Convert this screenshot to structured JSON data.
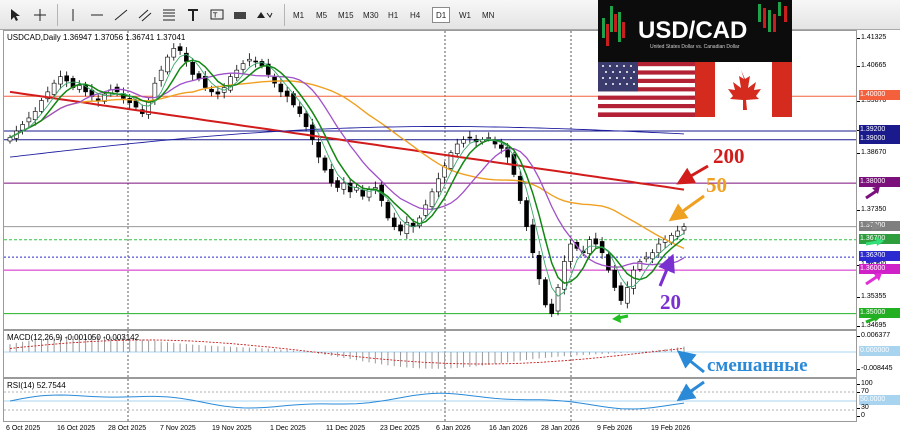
{
  "toolbar": {
    "timeframes": [
      "M1",
      "M5",
      "M15",
      "M30",
      "H1",
      "H4",
      "D1",
      "W1",
      "MN"
    ],
    "active_timeframe": "D1"
  },
  "chart": {
    "info_label": "USDCAD,Daily  1.36947 1.37056 1.36741 1.37041",
    "price_ticks": [
      "1.41325",
      "1.40665",
      "1.39870",
      "1.39200",
      "1.38670",
      "1.37350",
      "1.36100",
      "1.35355",
      "1.34695"
    ],
    "levels": [
      {
        "label": "1.40000",
        "color": "#f4603c"
      },
      {
        "label": "1.39200",
        "color": "#1a1a8c"
      },
      {
        "label": "1.39000",
        "color": "#1a1a8c"
      },
      {
        "label": "1.38000",
        "color": "#7b0f7b"
      },
      {
        "label": "1.37000",
        "color": "#7f7f7f"
      },
      {
        "label": "1.36700",
        "color": "#2e9e3c"
      },
      {
        "label": "1.36300",
        "color": "#2a2ad0"
      },
      {
        "label": "1.36000",
        "color": "#d020c8"
      },
      {
        "label": "1.35000",
        "color": "#22b022"
      }
    ],
    "dates": [
      "6 Oct 2025",
      "16 Oct 2025",
      "28 Oct 2025",
      "7 Nov 2025",
      "19 Nov 2025",
      "1 Dec 2025",
      "11 Dec 2025",
      "23 Dec 2025",
      "6 Jan 2026",
      "16 Jan 2026",
      "28 Jan 2026",
      "9 Feb 2026",
      "19 Feb 2026"
    ]
  },
  "macd": {
    "label": "MACD(12,26,9) -0.001050 -0.003142",
    "ticks": [
      "0.006377",
      "0.000000",
      "-0.008445"
    ]
  },
  "rsi": {
    "label": "RSI(14) 52.7544",
    "ticks": [
      "100",
      "70",
      "30",
      "0"
    ],
    "level_label": "50.0000"
  },
  "logo": {
    "title": "USD/CAD",
    "subtitle": "United States Dollar vs. Canadian Dollar"
  },
  "annotations": {
    "ma_200": "200",
    "ma_50": "50",
    "ma_20": "20",
    "mixed": "смешанные"
  },
  "colors": {
    "ma200": "#d21c1c",
    "ma50": "#f0a020",
    "ma20": "#a050c8",
    "ma_fast": "#118811",
    "ma_blue": "#2020a0",
    "bull": "#ffffff",
    "bear": "#000000"
  }
}
